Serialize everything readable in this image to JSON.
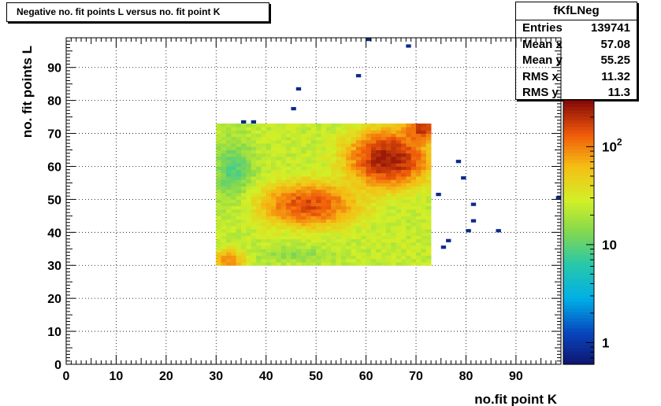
{
  "title": "Negative no. fit points L versus no. fit point K",
  "stats": {
    "name": "fKfLNeg",
    "rows": [
      {
        "label": "Entries",
        "value": "139741"
      },
      {
        "label": "Mean x",
        "value": "57.08"
      },
      {
        "label": "Mean y",
        "value": "55.25"
      },
      {
        "label": "RMS x",
        "value": "11.32"
      },
      {
        "label": "RMS y",
        "value": "11.3"
      }
    ]
  },
  "chart_data": {
    "type": "heatmap",
    "title": "Negative no. fit points L versus no. fit point K",
    "xlabel": "no.fit point K",
    "ylabel": "no. fit points  L",
    "xlim": [
      0,
      99
    ],
    "ylim": [
      0,
      99
    ],
    "x_ticks": [
      0,
      10,
      20,
      30,
      40,
      50,
      60,
      70,
      80,
      90
    ],
    "y_ticks": [
      0,
      10,
      20,
      30,
      40,
      50,
      60,
      70,
      80,
      90
    ],
    "grid": true,
    "z_scale": "log",
    "zlim": [
      0.6,
      300
    ],
    "colorbar_ticks": [
      {
        "value": 1,
        "label": "1"
      },
      {
        "value": 10,
        "label": "10"
      },
      {
        "value": 100,
        "label": "10",
        "sup": "2"
      }
    ],
    "dense_region": {
      "x_range": [
        30,
        73
      ],
      "y_range": [
        30,
        73
      ],
      "min_count": 5,
      "max_count": 250
    },
    "isolated_points": [
      [
        60,
        98
      ],
      [
        68,
        96
      ],
      [
        58,
        87
      ],
      [
        46,
        83
      ],
      [
        45,
        77
      ],
      [
        35,
        73
      ],
      [
        37,
        73
      ],
      [
        78,
        61
      ],
      [
        79,
        56
      ],
      [
        74,
        51
      ],
      [
        81,
        48
      ],
      [
        98,
        50
      ],
      [
        81,
        43
      ],
      [
        86,
        40
      ],
      [
        80,
        40
      ],
      [
        76,
        37
      ],
      [
        75,
        35
      ]
    ],
    "colors": {
      "low": "#1a1a6e",
      "mid": "#c8f028",
      "high": "#8b0000"
    }
  }
}
